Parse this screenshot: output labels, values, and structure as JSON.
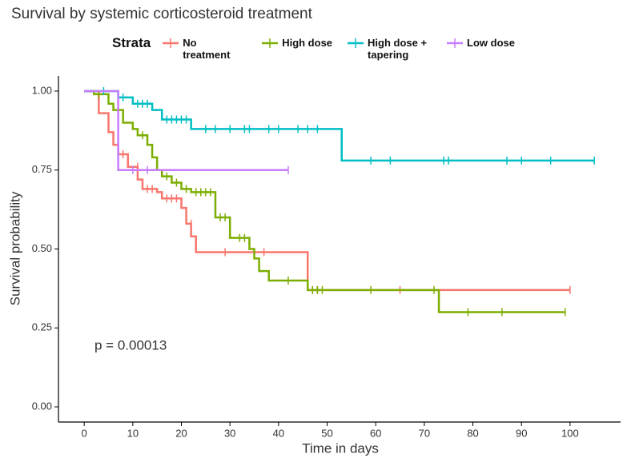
{
  "chart_data": {
    "type": "km",
    "title": "Survival by systemic corticosteroid treatment",
    "x_label": "Time in days",
    "y_label": "Survival probability",
    "annotation": "p = 0.00013",
    "legend_title": "Strata",
    "xlim": [
      -5.3,
      110.4
    ],
    "ylim": [
      -0.048,
      1.048
    ],
    "xticks": [
      0,
      10,
      20,
      30,
      40,
      50,
      60,
      70,
      80,
      90,
      100
    ],
    "yticks": [
      {
        "value": 0,
        "label": "0.00"
      },
      {
        "value": 0.25,
        "label": "0.25"
      },
      {
        "value": 0.5,
        "label": "0.50"
      },
      {
        "value": 0.75,
        "label": "0.75"
      },
      {
        "value": 1,
        "label": "1.00"
      }
    ],
    "series": [
      {
        "name": "No treatment",
        "color": "#F8766D",
        "x": [
          0,
          3,
          5,
          6,
          7,
          9,
          11,
          12,
          15,
          16,
          20,
          21,
          22,
          23,
          46,
          100
        ],
        "values": [
          1,
          0.93,
          0.87,
          0.83,
          0.8,
          0.76,
          0.72,
          0.69,
          0.68,
          0.66,
          0.63,
          0.58,
          0.54,
          0.49,
          0.37,
          0.37
        ],
        "censor_x": [
          3,
          8,
          11,
          13,
          14,
          17,
          18,
          19,
          22,
          29,
          37,
          47,
          48,
          65,
          100
        ],
        "censor_values": [
          0.97,
          0.8,
          0.76,
          0.69,
          0.69,
          0.66,
          0.66,
          0.66,
          0.58,
          0.49,
          0.49,
          0.37,
          0.37,
          0.37,
          0.37
        ]
      },
      {
        "name": "High dose",
        "color": "#7CAE00",
        "x": [
          0,
          2,
          5,
          6,
          8,
          10,
          11,
          13,
          14,
          15,
          16,
          18,
          20,
          22,
          27,
          30,
          34,
          35,
          36,
          38,
          46,
          73,
          99
        ],
        "values": [
          1,
          0.99,
          0.96,
          0.94,
          0.9,
          0.88,
          0.86,
          0.83,
          0.79,
          0.75,
          0.73,
          0.71,
          0.69,
          0.68,
          0.6,
          0.535,
          0.5,
          0.47,
          0.43,
          0.4,
          0.37,
          0.3,
          0.3
        ],
        "censor_x": [
          3,
          7,
          12,
          17,
          19,
          21,
          23,
          24,
          25,
          26,
          28,
          29,
          32,
          33,
          42,
          47,
          48,
          49,
          59,
          72,
          79,
          86,
          99
        ],
        "censor_values": [
          0.99,
          0.94,
          0.86,
          0.73,
          0.71,
          0.69,
          0.68,
          0.68,
          0.68,
          0.68,
          0.6,
          0.6,
          0.535,
          0.535,
          0.4,
          0.37,
          0.37,
          0.37,
          0.37,
          0.37,
          0.3,
          0.3,
          0.3
        ]
      },
      {
        "name": "High dose + tapering",
        "color": "#00BFC4",
        "x": [
          0,
          7,
          10,
          14,
          16,
          22,
          53,
          105
        ],
        "values": [
          1,
          0.98,
          0.96,
          0.94,
          0.91,
          0.88,
          0.78,
          0.78
        ],
        "censor_x": [
          4,
          8,
          11,
          12,
          13,
          17,
          18,
          19,
          20,
          21,
          25,
          27,
          30,
          33,
          34,
          38,
          40,
          44,
          46,
          48,
          59,
          63,
          74,
          75,
          87,
          90,
          96,
          105
        ],
        "censor_values": [
          1,
          0.98,
          0.96,
          0.96,
          0.96,
          0.91,
          0.91,
          0.91,
          0.91,
          0.91,
          0.88,
          0.88,
          0.88,
          0.88,
          0.88,
          0.88,
          0.88,
          0.88,
          0.88,
          0.88,
          0.78,
          0.78,
          0.78,
          0.78,
          0.78,
          0.78,
          0.78,
          0.78
        ]
      },
      {
        "name": "Low dose",
        "color": "#C77CFF",
        "x": [
          0,
          7,
          42
        ],
        "values": [
          1,
          0.75,
          0.75
        ],
        "censor_x": [
          10,
          13,
          42
        ],
        "censor_values": [
          0.75,
          0.75,
          0.75
        ]
      }
    ]
  }
}
